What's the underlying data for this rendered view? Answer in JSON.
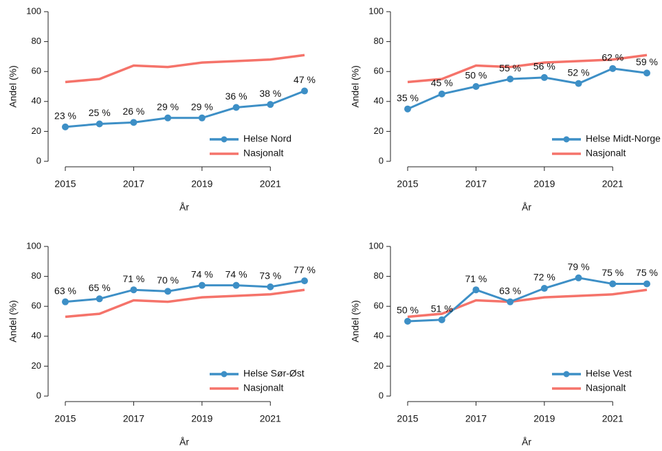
{
  "chart_data": [
    {
      "type": "line",
      "x": [
        2015,
        2016,
        2017,
        2018,
        2019,
        2020,
        2021,
        2022
      ],
      "xlabel": "År",
      "ylabel": "Andel (%)",
      "xlim": [
        2015,
        2022
      ],
      "xticks": [
        2015,
        2017,
        2019,
        2021
      ],
      "ylim": [
        0,
        100
      ],
      "yticks": [
        0,
        20,
        40,
        60,
        80,
        100
      ],
      "legend": "bottom-right",
      "series": [
        {
          "name": "Helse Nord",
          "color": "#3d8fc6",
          "values": [
            23,
            25,
            26,
            29,
            29,
            36,
            38,
            47
          ],
          "value_labels": [
            "23 %",
            "25 %",
            "26 %",
            "29 %",
            "29 %",
            "36 %",
            "38 %",
            "47 %"
          ]
        },
        {
          "name": "Nasjonalt",
          "color": "#f5736a",
          "values": [
            53,
            55,
            64,
            63,
            66,
            67,
            68,
            71
          ]
        }
      ]
    },
    {
      "type": "line",
      "x": [
        2015,
        2016,
        2017,
        2018,
        2019,
        2020,
        2021,
        2022
      ],
      "xlabel": "År",
      "ylabel": "Andel (%)",
      "xlim": [
        2015,
        2022
      ],
      "xticks": [
        2015,
        2017,
        2019,
        2021
      ],
      "ylim": [
        0,
        100
      ],
      "yticks": [
        0,
        20,
        40,
        60,
        80,
        100
      ],
      "legend": "bottom-right",
      "series": [
        {
          "name": "Helse Midt-Norge",
          "color": "#3d8fc6",
          "values": [
            35,
            45,
            50,
            55,
            56,
            52,
            62,
            59
          ],
          "value_labels": [
            "35 %",
            "45 %",
            "50 %",
            "55 %",
            "56 %",
            "52 %",
            "62 %",
            "59 %"
          ]
        },
        {
          "name": "Nasjonalt",
          "color": "#f5736a",
          "values": [
            53,
            55,
            64,
            63,
            66,
            67,
            68,
            71
          ]
        }
      ]
    },
    {
      "type": "line",
      "x": [
        2015,
        2016,
        2017,
        2018,
        2019,
        2020,
        2021,
        2022
      ],
      "xlabel": "År",
      "ylabel": "Andel (%)",
      "xlim": [
        2015,
        2022
      ],
      "xticks": [
        2015,
        2017,
        2019,
        2021
      ],
      "ylim": [
        0,
        100
      ],
      "yticks": [
        0,
        20,
        40,
        60,
        80,
        100
      ],
      "legend": "bottom-right",
      "series": [
        {
          "name": "Helse Sør-Øst",
          "color": "#3d8fc6",
          "values": [
            63,
            65,
            71,
            70,
            74,
            74,
            73,
            77
          ],
          "value_labels": [
            "63 %",
            "65 %",
            "71 %",
            "70 %",
            "74 %",
            "74 %",
            "73 %",
            "77 %"
          ]
        },
        {
          "name": "Nasjonalt",
          "color": "#f5736a",
          "values": [
            53,
            55,
            64,
            63,
            66,
            67,
            68,
            71
          ]
        }
      ]
    },
    {
      "type": "line",
      "x": [
        2015,
        2016,
        2017,
        2018,
        2019,
        2020,
        2021,
        2022
      ],
      "xlabel": "År",
      "ylabel": "Andel (%)",
      "xlim": [
        2015,
        2022
      ],
      "xticks": [
        2015,
        2017,
        2019,
        2021
      ],
      "ylim": [
        0,
        100
      ],
      "yticks": [
        0,
        20,
        40,
        60,
        80,
        100
      ],
      "legend": "bottom-right",
      "series": [
        {
          "name": "Helse Vest",
          "color": "#3d8fc6",
          "values": [
            50,
            51,
            71,
            63,
            72,
            79,
            75,
            75
          ],
          "value_labels": [
            "50 %",
            "51 %",
            "71 %",
            "63 %",
            "72 %",
            "79 %",
            "75 %",
            "75 %"
          ]
        },
        {
          "name": "Nasjonalt",
          "color": "#f5736a",
          "values": [
            53,
            55,
            64,
            63,
            66,
            67,
            68,
            71
          ]
        }
      ]
    }
  ]
}
